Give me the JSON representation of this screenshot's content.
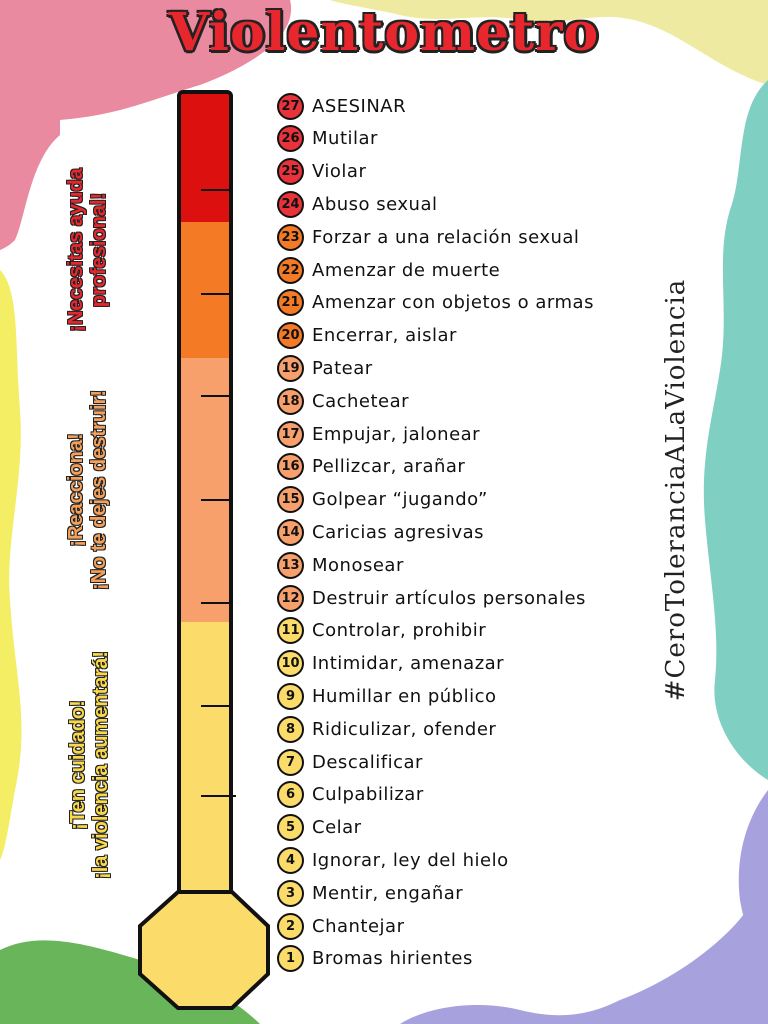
{
  "title": "Violentometro",
  "hashtag": "#CeroToleranciaALaViolencia",
  "sections": [
    {
      "lines": [
        "¡Necesitas ayuda",
        "profesional!"
      ],
      "color": "#e8262d"
    },
    {
      "lines": [
        "¡Reacciona!",
        "¡No te dejes destruir!"
      ],
      "color": "#f4a05a"
    },
    {
      "lines": [
        "¡Ten cuidado!",
        "¡la violencia aumentará!"
      ],
      "color": "#f9d84a"
    }
  ],
  "colors": {
    "red": "#dd1010",
    "orange": "#f47a25",
    "salmon": "#f8a06c",
    "yellow": "#fbdc6a",
    "text": "#111111"
  },
  "items": [
    {
      "n": "27",
      "text": "ASESINAR",
      "color": "#e8333a"
    },
    {
      "n": "26",
      "text": "Mutilar",
      "color": "#e8333a"
    },
    {
      "n": "25",
      "text": "Violar",
      "color": "#e8333a"
    },
    {
      "n": "24",
      "text": "Abuso sexual",
      "color": "#e8333a"
    },
    {
      "n": "23",
      "text": "Forzar a una relación sexual",
      "color": "#f47a25"
    },
    {
      "n": "22",
      "text": "Amenzar de muerte",
      "color": "#f47a25"
    },
    {
      "n": "21",
      "text": "Amenzar con objetos o armas",
      "color": "#f47a25"
    },
    {
      "n": "20",
      "text": "Encerrar, aislar",
      "color": "#f47a25"
    },
    {
      "n": "19",
      "text": "Patear",
      "color": "#f8a06c"
    },
    {
      "n": "18",
      "text": "Cachetear",
      "color": "#f8a06c"
    },
    {
      "n": "17",
      "text": "Empujar, jalonear",
      "color": "#f8a06c"
    },
    {
      "n": "16",
      "text": "Pellizcar, arañar",
      "color": "#f8a06c"
    },
    {
      "n": "15",
      "text": "Golpear “jugando”",
      "color": "#f8a06c"
    },
    {
      "n": "14",
      "text": "Caricias agresivas",
      "color": "#f8a06c"
    },
    {
      "n": "13",
      "text": "Monosear",
      "color": "#f8a06c"
    },
    {
      "n": "12",
      "text": "Destruir artículos personales",
      "color": "#f8a06c"
    },
    {
      "n": "11",
      "text": "Controlar, prohibir",
      "color": "#fbdc6a"
    },
    {
      "n": "10",
      "text": "Intimidar, amenazar",
      "color": "#fbdc6a"
    },
    {
      "n": "9",
      "text": "Humillar en público",
      "color": "#fbdc6a"
    },
    {
      "n": "8",
      "text": "Ridiculizar, ofender",
      "color": "#fbdc6a"
    },
    {
      "n": "7",
      "text": "Descalificar",
      "color": "#fbdc6a"
    },
    {
      "n": "6",
      "text": "Culpabilizar",
      "color": "#fbdc6a"
    },
    {
      "n": "5",
      "text": "Celar",
      "color": "#fbdc6a"
    },
    {
      "n": "4",
      "text": "Ignorar, ley del hielo",
      "color": "#fbdc6a"
    },
    {
      "n": "3",
      "text": "Mentir, engañar",
      "color": "#fbdc6a"
    },
    {
      "n": "2",
      "text": "Chantejar",
      "color": "#fbdc6a"
    },
    {
      "n": "1",
      "text": "Bromas hirientes",
      "color": "#fbdc6a"
    }
  ]
}
